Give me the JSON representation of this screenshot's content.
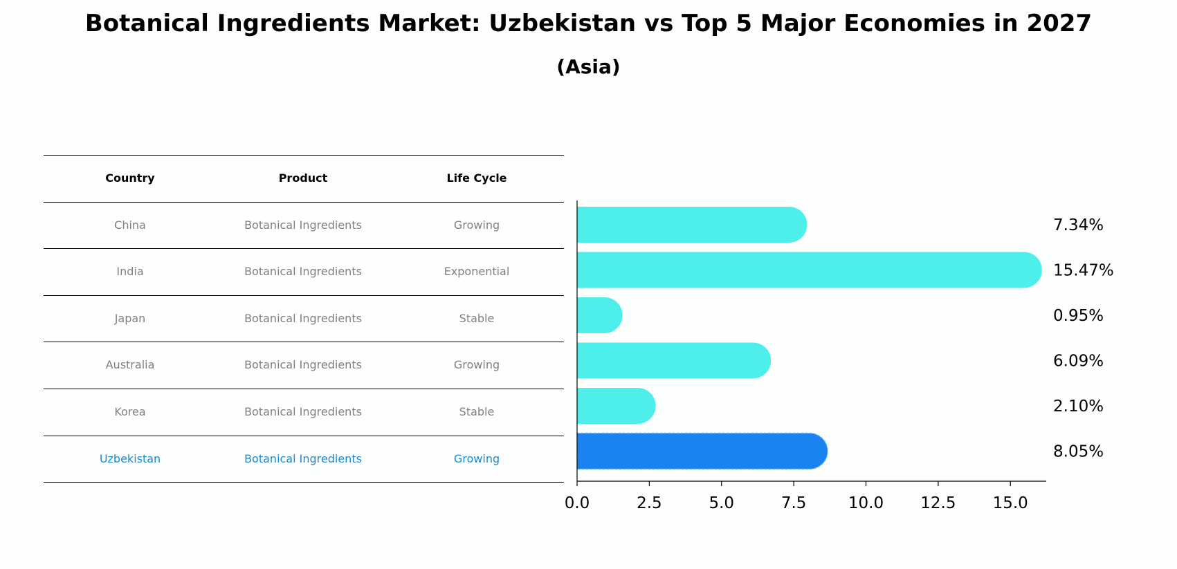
{
  "title": "Botanical Ingredients Market: Uzbekistan vs Top 5 Major Economies in 2027",
  "subtitle": "(Asia)",
  "table": {
    "headers": [
      "Country",
      "Product",
      "Life Cycle"
    ],
    "rows": [
      [
        "China",
        "Botanical Ingredients",
        "Growing"
      ],
      [
        "India",
        "Botanical Ingredients",
        "Exponential"
      ],
      [
        "Japan",
        "Botanical Ingredients",
        "Stable"
      ],
      [
        "Australia",
        "Botanical Ingredients",
        "Growing"
      ],
      [
        "Korea",
        "Botanical Ingredients",
        "Stable"
      ],
      [
        "Uzbekistan",
        "Botanical Ingredients",
        "Growing"
      ]
    ]
  },
  "colors": {
    "bar": "#4eeeea",
    "highlight": "#1984f1",
    "highlight_text": "#1a8ad4"
  },
  "chart_data": {
    "type": "bar",
    "orientation": "horizontal",
    "categories": [
      "China",
      "India",
      "Japan",
      "Australia",
      "Korea",
      "Uzbekistan"
    ],
    "values": [
      7.34,
      15.47,
      0.95,
      6.09,
      2.1,
      8.05
    ],
    "value_labels": [
      "7.34%",
      "15.47%",
      "0.95%",
      "6.09%",
      "2.10%",
      "8.05%"
    ],
    "xticks": [
      "0.0",
      "2.5",
      "5.0",
      "7.5",
      "10.0",
      "12.5",
      "15.0"
    ],
    "xlim": [
      0,
      16.24
    ],
    "highlight": "Uzbekistan",
    "grid": false
  }
}
